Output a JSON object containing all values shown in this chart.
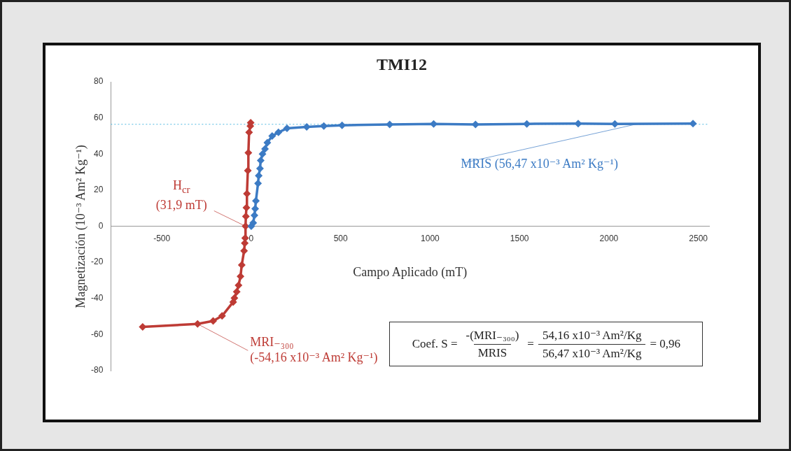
{
  "chart_data": {
    "type": "line",
    "title": "TMI12",
    "xlabel": "Campo Aplicado (mT)",
    "ylabel": "Magnetización (10⁻³ Am² Kg⁻¹)",
    "xlim": [
      -785,
      2560
    ],
    "xticks": [
      -500,
      0,
      500,
      1000,
      1500,
      2000,
      2500
    ],
    "ylim": [
      -80,
      80
    ],
    "yticks": [
      -80,
      -60,
      -40,
      -20,
      0,
      20,
      40,
      60,
      80
    ],
    "grid": false,
    "legend": false,
    "marker": "diamond",
    "line_style": "solid",
    "series": [
      {
        "color": "#3c7bc4",
        "x": [
          0,
          11,
          18,
          22,
          26,
          38,
          42,
          49,
          53,
          63,
          77,
          90,
          117,
          152,
          200,
          310,
          406,
          508,
          774,
          1020,
          1254,
          1541,
          1828,
          2033,
          2470
        ],
        "values": [
          0,
          1.8,
          6,
          9.7,
          14,
          23.7,
          28,
          32,
          36.4,
          40,
          42.8,
          46.3,
          50,
          52,
          54.2,
          55,
          55.5,
          55.9,
          56.4,
          56.7,
          56.4,
          56.7,
          56.9,
          56.7,
          56.9
        ]
      },
      {
        "color": "#be3b35",
        "x": [
          -607,
          -300,
          -213,
          -163,
          -101,
          -94,
          -81,
          -71,
          -60,
          -53,
          -40,
          -36,
          -34,
          -31.9,
          -30,
          -27,
          -24,
          -19,
          -16,
          -12,
          -5,
          -3
        ],
        "values": [
          -55.8,
          -54.16,
          -52.5,
          -49.7,
          -42,
          -39.8,
          -36.3,
          -32.7,
          -27.8,
          -21.5,
          -13.7,
          -9.4,
          -6.6,
          0,
          5.4,
          10.3,
          18,
          30.8,
          40.7,
          52,
          55.5,
          57.3
        ]
      }
    ],
    "ref_lines": [
      {
        "axis": "y",
        "value": 56.47,
        "color": "#4fb8e0",
        "line_style": "dotted"
      }
    ],
    "annotations": [
      {
        "text": "H$_{cr}$\n(31,9 mT)",
        "x": -31.9,
        "y": 0
      },
      {
        "text": "MRI₋₃₀₀\n(-54,16 x10⁻³ Am² Kg⁻¹)",
        "x": -300,
        "y": -54.16
      },
      {
        "text": "MRIS (56,47 x10⁻³ Am² Kg⁻¹)",
        "x": 2150,
        "y": 56.47
      },
      "Coef. S =",
      "-(MRI₋₃₀₀)",
      "MRIS",
      "=",
      "54,16 x10⁻³ Am²/Kg",
      "56,47 x10⁻³ Am²/Kg",
      "= 0,96"
    ]
  }
}
